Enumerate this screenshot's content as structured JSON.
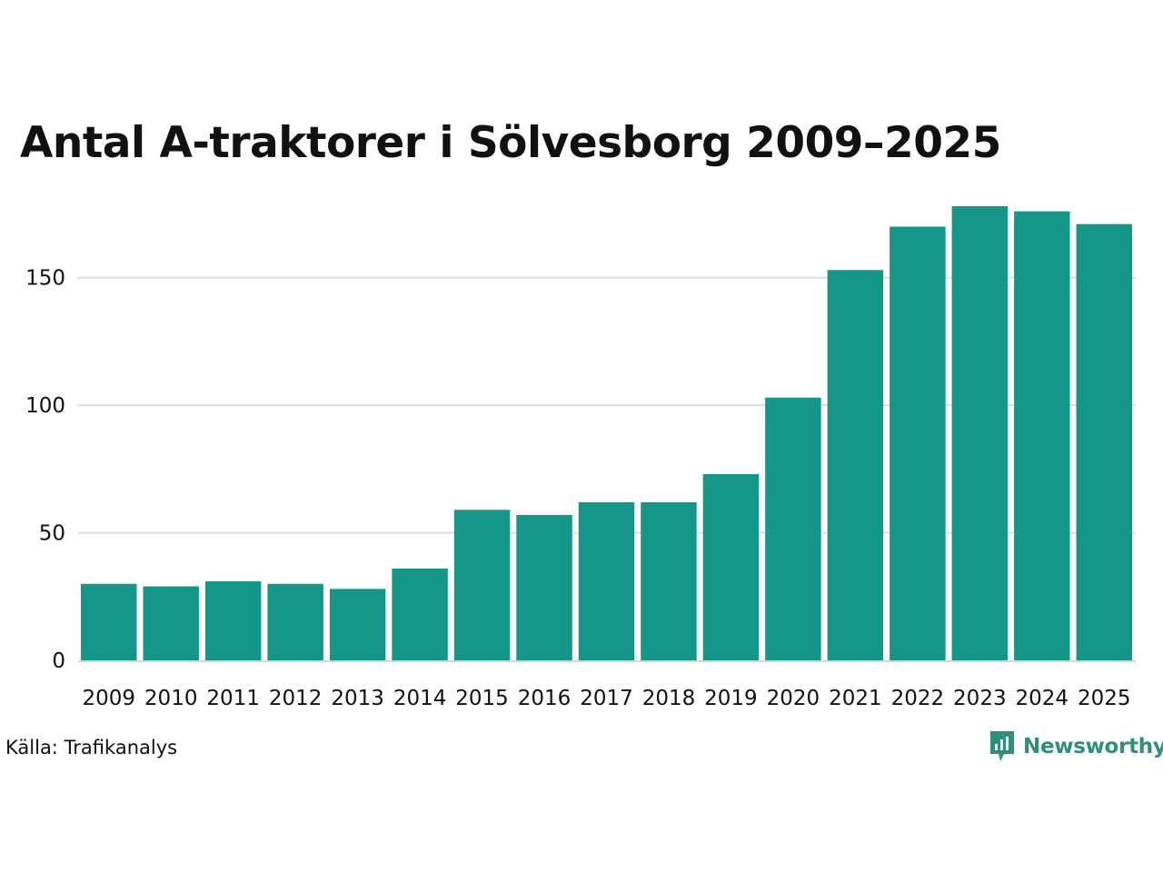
{
  "chart_data": {
    "type": "bar",
    "title": "Antal A-traktorer i Sölvesborg 2009–2025",
    "xlabel": "",
    "ylabel": "",
    "categories": [
      "2009",
      "2010",
      "2011",
      "2012",
      "2013",
      "2014",
      "2015",
      "2016",
      "2017",
      "2018",
      "2019",
      "2020",
      "2021",
      "2022",
      "2023",
      "2024",
      "2025"
    ],
    "values": [
      30,
      29,
      31,
      30,
      28,
      36,
      59,
      57,
      62,
      62,
      73,
      103,
      153,
      170,
      178,
      176,
      171
    ],
    "yticks": [
      0,
      50,
      100,
      150
    ],
    "ylim": [
      0,
      183
    ],
    "grid": true,
    "legend": "none",
    "bar_color": "#159688",
    "grid_color": "#dddddd"
  },
  "footer": {
    "source": "Källa: Trafikanalys",
    "brand": "Newsworthy",
    "brand_color": "#2f8f78",
    "brand_icon": "newsworthy-logo-icon"
  }
}
